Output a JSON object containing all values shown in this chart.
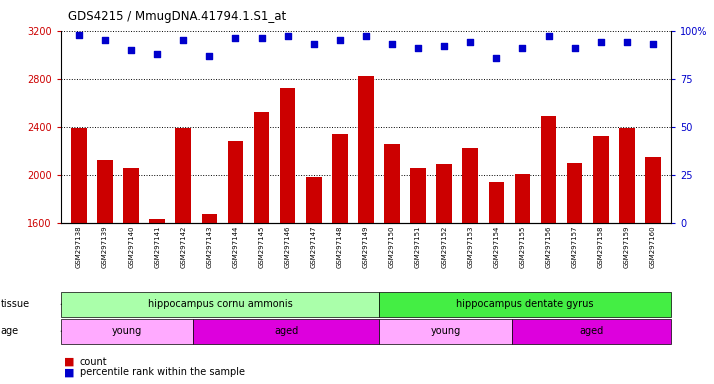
{
  "title": "GDS4215 / MmugDNA.41794.1.S1_at",
  "samples": [
    "GSM297138",
    "GSM297139",
    "GSM297140",
    "GSM297141",
    "GSM297142",
    "GSM297143",
    "GSM297144",
    "GSM297145",
    "GSM297146",
    "GSM297147",
    "GSM297148",
    "GSM297149",
    "GSM297150",
    "GSM297151",
    "GSM297152",
    "GSM297153",
    "GSM297154",
    "GSM297155",
    "GSM297156",
    "GSM297157",
    "GSM297158",
    "GSM297159",
    "GSM297160"
  ],
  "counts": [
    2390,
    2120,
    2060,
    1630,
    2390,
    1670,
    2280,
    2520,
    2720,
    1980,
    2340,
    2820,
    2260,
    2060,
    2090,
    2220,
    1940,
    2010,
    2490,
    2100,
    2320,
    2390,
    2150
  ],
  "percentile_ranks": [
    98,
    95,
    90,
    88,
    95,
    87,
    96,
    96,
    97,
    93,
    95,
    97,
    93,
    91,
    92,
    94,
    86,
    91,
    97,
    91,
    94,
    94,
    93
  ],
  "bar_color": "#cc0000",
  "dot_color": "#0000cc",
  "ylim_left": [
    1600,
    3200
  ],
  "ylim_right": [
    0,
    100
  ],
  "yticks_left": [
    1600,
    2000,
    2400,
    2800,
    3200
  ],
  "yticks_right": [
    0,
    25,
    50,
    75,
    100
  ],
  "grid_values": [
    2000,
    2400,
    2800,
    3200
  ],
  "tissue_groups": [
    {
      "label": "hippocampus cornu ammonis",
      "start": 0,
      "end": 11,
      "color": "#aaffaa"
    },
    {
      "label": "hippocampus dentate gyrus",
      "start": 12,
      "end": 22,
      "color": "#44ee44"
    }
  ],
  "age_groups": [
    {
      "label": "young",
      "start": 0,
      "end": 4,
      "color": "#ffaaff"
    },
    {
      "label": "aged",
      "start": 5,
      "end": 11,
      "color": "#dd00dd"
    },
    {
      "label": "young",
      "start": 12,
      "end": 16,
      "color": "#ffaaff"
    },
    {
      "label": "aged",
      "start": 17,
      "end": 22,
      "color": "#dd00dd"
    }
  ],
  "legend_count_color": "#cc0000",
  "legend_dot_color": "#0000cc",
  "tick_bg_color": "#d8d8d8"
}
